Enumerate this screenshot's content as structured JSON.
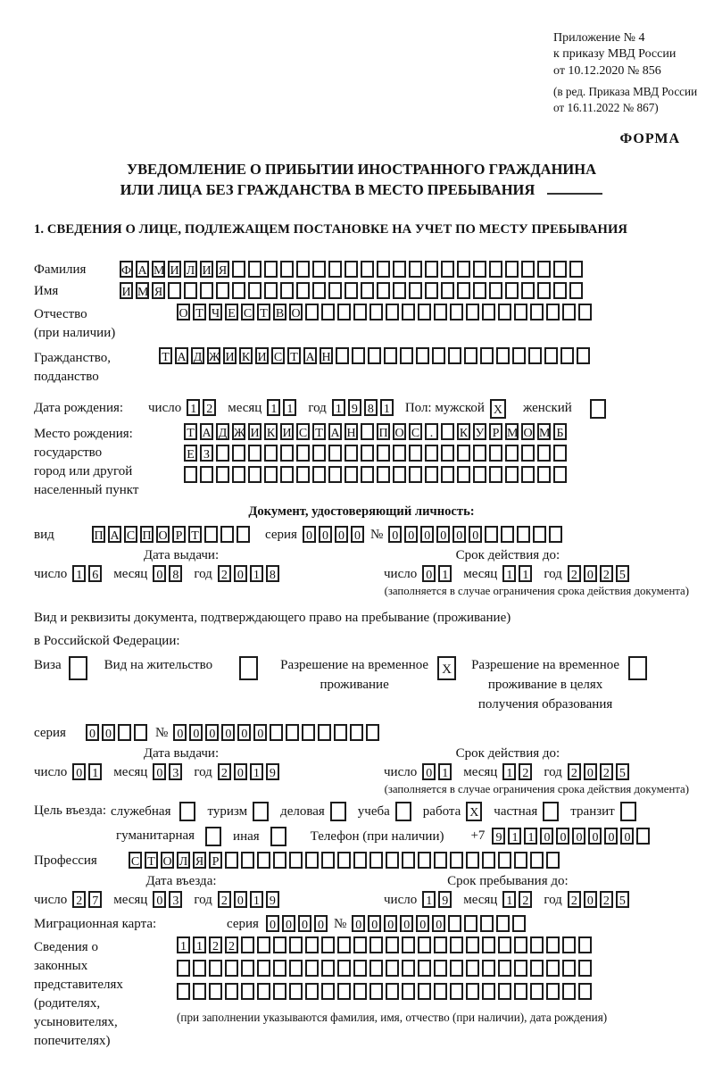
{
  "header": {
    "ref_lines": [
      "Приложение № 4",
      "к приказу МВД России",
      "от 10.12.2020 № 856"
    ],
    "amend_lines": [
      "(в ред. Приказа МВД России",
      "от 16.11.2022 № 867)"
    ],
    "form_label": "ФОРМА"
  },
  "title": {
    "line1": "УВЕДОМЛЕНИЕ О ПРИБЫТИИ ИНОСТРАННОГО ГРАЖДАНИНА",
    "line2": "ИЛИ ЛИЦА БЕЗ ГРАЖДАНСТВА В МЕСТО ПРЕБЫВАНИЯ"
  },
  "section1": {
    "title": "1. СВЕДЕНИЯ О ЛИЦЕ, ПОДЛЕЖАЩЕМ ПОСТАНОВКЕ НА УЧЕТ ПО МЕСТУ ПРЕБЫВАНИЯ"
  },
  "labels": {
    "surname": "Фамилия",
    "name": "Имя",
    "patronymic1": "Отчество",
    "patronymic2": "(при наличии)",
    "citizenship1": "Гражданство,",
    "citizenship2": "подданство",
    "birth_date": "Дата рождения:",
    "day": "число",
    "month": "месяц",
    "year": "год",
    "sex_male": "Пол: мужской",
    "sex_female": "женский",
    "birthplace1": "Место рождения:",
    "birthplace2": "государство",
    "birthplace3": "город или другой",
    "birthplace4": "населенный пункт",
    "identity_header": "Документ, удостоверяющий личность:",
    "kind": "вид",
    "series": "серия",
    "number": "№",
    "issue_date": "Дата выдачи:",
    "valid_until": "Срок действия до:",
    "restriction_note": "(заполняется в случае ограничения срока действия документа)",
    "residence_doc1": "Вид и реквизиты документа, подтверждающего право на пребывание (проживание)",
    "residence_doc2": "в Российской Федерации:",
    "visa": "Виза",
    "residence_permit": "Вид на жительство",
    "temp_res1": "Разрешение на временное",
    "temp_res2": "проживание",
    "temp_edu1": "Разрешение на временное",
    "temp_edu2": "проживание в целях",
    "temp_edu3": "получения образования",
    "purpose": "Цель въезда:",
    "p_official": "служебная",
    "p_tourism": "туризм",
    "p_business": "деловая",
    "p_study": "учеба",
    "p_work": "работа",
    "p_private": "частная",
    "p_transit": "транзит",
    "p_humanitarian": "гуманитарная",
    "p_other": "иная",
    "phone": "Телефон (при наличии)",
    "phone_code": "+7",
    "profession": "Профессия",
    "entry_date": "Дата въезда:",
    "stay_until": "Срок пребывания до:",
    "migration_card": "Миграционная карта:",
    "rep1": "Сведения о",
    "rep2": "законных",
    "rep3": "представителях",
    "rep4": "(родителях,",
    "rep5": "усыновителях,",
    "rep6": "попечителях)",
    "rep_note": "(при заполнении указываются фамилия, имя, отчество (при наличии), дата рождения)"
  },
  "boxes": {
    "surname": {
      "value": "ФАМИЛИЯ",
      "count": 29
    },
    "name": {
      "value": "ИМЯ",
      "count": 29
    },
    "patronymic": {
      "value": "ОТЧЕСТВО",
      "count": 26
    },
    "citizenship": {
      "value": "ТАДЖИКИСТАН",
      "count": 27
    },
    "birth_day": {
      "value": "12",
      "count": 2
    },
    "birth_month": {
      "value": "11",
      "count": 2
    },
    "birth_year": {
      "value": "1981",
      "count": 4
    },
    "sex_male": {
      "value": "X",
      "count": 1
    },
    "sex_female": {
      "value": "",
      "count": 1
    },
    "birthplace1": {
      "value": "ТАДЖИКИСТАН ПОС. КУРМОМБ",
      "count": 24
    },
    "birthplace2": {
      "value": "ЕЗ",
      "count": 24
    },
    "birthplace3": {
      "value": "",
      "count": 24
    },
    "id_kind": {
      "value": "ПАСПОРТ",
      "count": 10
    },
    "id_series": {
      "value": "0000",
      "count": 4
    },
    "id_number": {
      "value": "000000",
      "count": 11
    },
    "id_issue_day": {
      "value": "16",
      "count": 2
    },
    "id_issue_month": {
      "value": "08",
      "count": 2
    },
    "id_issue_year": {
      "value": "2018",
      "count": 4
    },
    "id_valid_day": {
      "value": "01",
      "count": 2
    },
    "id_valid_month": {
      "value": "11",
      "count": 2
    },
    "id_valid_year": {
      "value": "2025",
      "count": 4
    },
    "cb_visa": {
      "value": "",
      "count": 1
    },
    "cb_residence": {
      "value": "",
      "count": 1
    },
    "cb_temp": {
      "value": "X",
      "count": 1
    },
    "cb_temp_edu": {
      "value": "",
      "count": 1
    },
    "permit_series": {
      "value": "00",
      "count": 4
    },
    "permit_number": {
      "value": "000000",
      "count": 13
    },
    "permit_issue_day": {
      "value": "01",
      "count": 2
    },
    "permit_issue_month": {
      "value": "03",
      "count": 2
    },
    "permit_issue_year": {
      "value": "2019",
      "count": 4
    },
    "permit_valid_day": {
      "value": "01",
      "count": 2
    },
    "permit_valid_month": {
      "value": "12",
      "count": 2
    },
    "permit_valid_year": {
      "value": "2025",
      "count": 4
    },
    "cb_official": {
      "value": "",
      "count": 1
    },
    "cb_tourism": {
      "value": "",
      "count": 1
    },
    "cb_business": {
      "value": "",
      "count": 1
    },
    "cb_study": {
      "value": "",
      "count": 1
    },
    "cb_work": {
      "value": "X",
      "count": 1
    },
    "cb_private": {
      "value": "",
      "count": 1
    },
    "cb_transit": {
      "value": "",
      "count": 1
    },
    "cb_humanitarian": {
      "value": "",
      "count": 1
    },
    "cb_other": {
      "value": "",
      "count": 1
    },
    "phone": {
      "value": "911000000",
      "count": 10
    },
    "profession": {
      "value": "СТОЛЯР",
      "count": 27
    },
    "entry_day": {
      "value": "27",
      "count": 2
    },
    "entry_month": {
      "value": "03",
      "count": 2
    },
    "entry_year": {
      "value": "2019",
      "count": 4
    },
    "stay_day": {
      "value": "19",
      "count": 2
    },
    "stay_month": {
      "value": "12",
      "count": 2
    },
    "stay_year": {
      "value": "2025",
      "count": 4
    },
    "migr_series": {
      "value": "0000",
      "count": 4
    },
    "migr_number": {
      "value": "000000",
      "count": 11
    },
    "rep_row1": {
      "value": "1122",
      "count": 26
    },
    "rep_row2": {
      "value": "",
      "count": 26
    },
    "rep_row3": {
      "value": "",
      "count": 26
    }
  }
}
